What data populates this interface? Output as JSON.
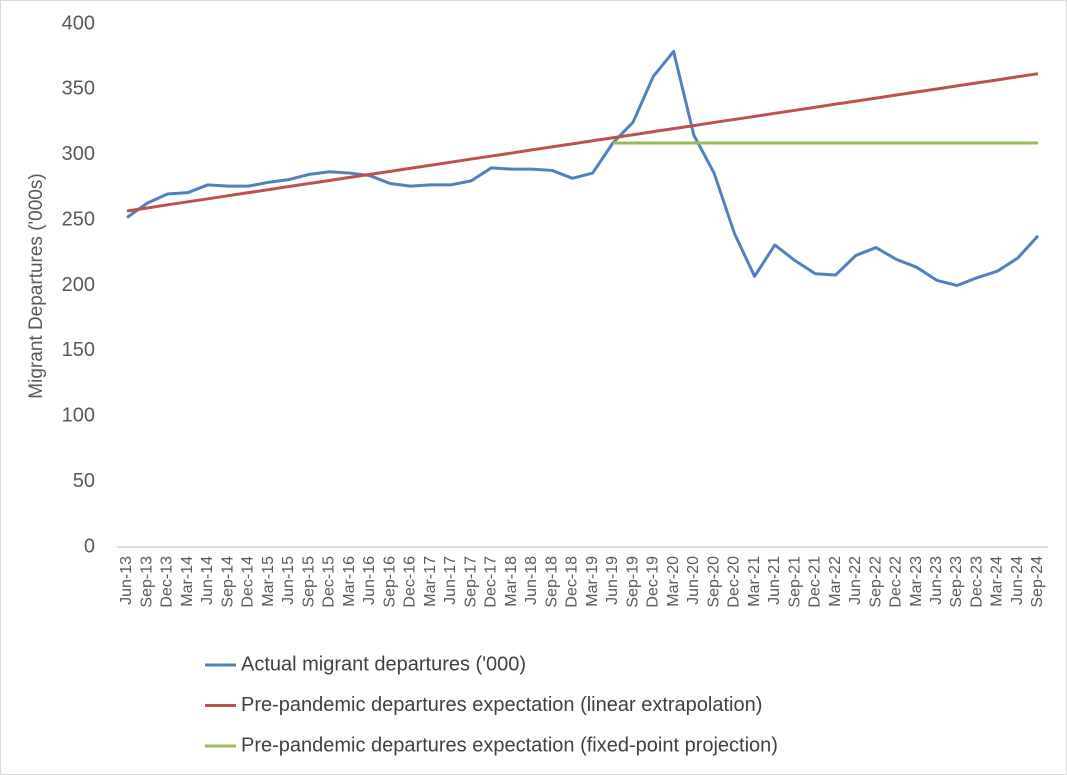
{
  "chart_data": {
    "type": "line",
    "y_label": "Migrant Departures ('000s)",
    "categories": [
      "Jun-13",
      "Sep-13",
      "Dec-13",
      "Mar-14",
      "Jun-14",
      "Sep-14",
      "Dec-14",
      "Mar-15",
      "Jun-15",
      "Sep-15",
      "Dec-15",
      "Mar-16",
      "Jun-16",
      "Sep-16",
      "Dec-16",
      "Mar-17",
      "Jun-17",
      "Sep-17",
      "Dec-17",
      "Mar-18",
      "Jun-18",
      "Sep-18",
      "Dec-18",
      "Mar-19",
      "Jun-19",
      "Sep-19",
      "Dec-19",
      "Mar-20",
      "Jun-20",
      "Sep-20",
      "Dec-20",
      "Mar-21",
      "Jun-21",
      "Sep-21",
      "Dec-21",
      "Mar-22",
      "Jun-22",
      "Sep-22",
      "Dec-22",
      "Mar-23",
      "Jun-23",
      "Sep-23",
      "Dec-23",
      "Mar-24",
      "Jun-24",
      "Sep-24"
    ],
    "series": [
      {
        "name": "Actual migrant departures ('000)",
        "color": "#4f81bd",
        "values": [
          252,
          263,
          270,
          271,
          277,
          276,
          276,
          279,
          281,
          285,
          287,
          286,
          284,
          278,
          276,
          277,
          277,
          280,
          290,
          289,
          289,
          288,
          282,
          286,
          309,
          325,
          360,
          379,
          315,
          286,
          240,
          207,
          231,
          219,
          209,
          208,
          223,
          229,
          220,
          214,
          204,
          200,
          206,
          211,
          221,
          238
        ]
      },
      {
        "name": "Pre-pandemic departures expectation (linear extrapolation)",
        "color": "#c0504d",
        "values": [
          257,
          259.3,
          261.7,
          264,
          266.3,
          268.7,
          271,
          273.3,
          275.7,
          278,
          280.3,
          282.7,
          285,
          287.3,
          289.7,
          292,
          294.3,
          296.7,
          299,
          301.3,
          303.7,
          306,
          308.3,
          310.7,
          313,
          315.3,
          317.7,
          320,
          322.3,
          324.7,
          327,
          329.3,
          331.7,
          334,
          336.3,
          338.7,
          341,
          343.3,
          345.7,
          348,
          350.3,
          352.7,
          355,
          357.3,
          359.7,
          362
        ]
      },
      {
        "name": "Pre-pandemic departures expectation (fixed-point projection)",
        "color": "#9bbb59",
        "values": [
          null,
          null,
          null,
          null,
          null,
          null,
          null,
          null,
          null,
          null,
          null,
          null,
          null,
          null,
          null,
          null,
          null,
          null,
          null,
          null,
          null,
          null,
          null,
          null,
          309,
          309,
          309,
          309,
          309,
          309,
          309,
          309,
          309,
          309,
          309,
          309,
          309,
          309,
          309,
          309,
          309,
          309,
          309,
          309,
          309,
          309
        ]
      }
    ],
    "ylim": [
      0,
      400
    ],
    "yticks": [
      0,
      50,
      100,
      150,
      200,
      250,
      300,
      350,
      400
    ],
    "grid": false
  }
}
